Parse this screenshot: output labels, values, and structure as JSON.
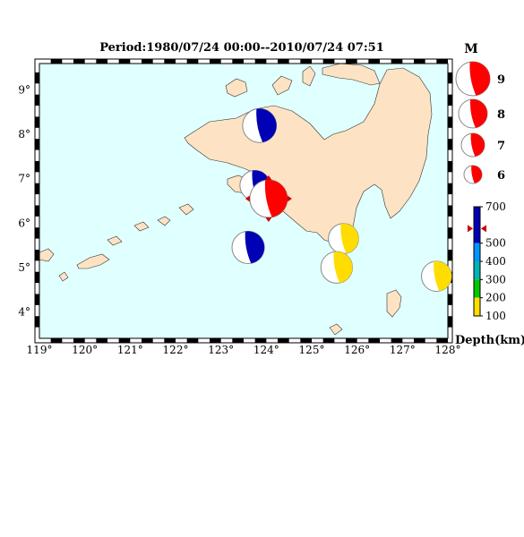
{
  "title": "Period:1980/07/24 00:00--2010/07/24 07:51",
  "map": {
    "lon_range": [
      119,
      128
    ],
    "lat_range": [
      3.4,
      9.6
    ],
    "ocean_color": "#e0ffff",
    "land_color": "#fde3c3",
    "lon_ticks": [
      "119°",
      "120°",
      "121°",
      "122°",
      "123°",
      "124°",
      "125°",
      "126°",
      "127°",
      "128°"
    ],
    "lat_ticks": [
      "9°",
      "8°",
      "7°",
      "6°",
      "5°",
      "4°"
    ]
  },
  "events": [
    {
      "lon": 123.85,
      "lat": 8.2,
      "magnitude": 7,
      "depth_band": "500-700",
      "color": "#0000b4"
    },
    {
      "lon": 123.75,
      "lat": 6.85,
      "magnitude": 6.5,
      "depth_band": "500-700",
      "color": "#0000b4"
    },
    {
      "lon": 124.05,
      "lat": 6.55,
      "magnitude": 7.5,
      "depth_band": "500-700",
      "color": "#ff0000",
      "selected": true
    },
    {
      "lon": 123.6,
      "lat": 5.45,
      "magnitude": 6.8,
      "depth_band": "500-700",
      "color": "#0000b4"
    },
    {
      "lon": 125.7,
      "lat": 5.65,
      "magnitude": 6.5,
      "depth_band": "0-100",
      "color": "#ffdd00"
    },
    {
      "lon": 125.55,
      "lat": 5.0,
      "magnitude": 6.7,
      "depth_band": "0-100",
      "color": "#ffdd00"
    },
    {
      "lon": 127.75,
      "lat": 4.8,
      "magnitude": 6.5,
      "depth_band": "0-100",
      "color": "#ffdd00"
    }
  ],
  "magnitude_legend": {
    "heading": "M",
    "items": [
      {
        "label": "9",
        "magnitude": 9
      },
      {
        "label": "8",
        "magnitude": 8
      },
      {
        "label": "7",
        "magnitude": 7
      },
      {
        "label": "6",
        "magnitude": 6
      }
    ]
  },
  "depth_colorbar": {
    "unit_label": "Depth(km)",
    "labels": [
      "700",
      "500",
      "400",
      "300",
      "200",
      "100"
    ],
    "bands": [
      {
        "range": "500-700",
        "color": "#0000b4"
      },
      {
        "range": "400-500",
        "color": "#0096ff"
      },
      {
        "range": "300-400",
        "color": "#00b4b4"
      },
      {
        "range": "200-300",
        "color": "#00c800"
      },
      {
        "range": "100-200",
        "color": "#ffdd00"
      }
    ],
    "marker_depth": 580,
    "marker_color": "#cc0000"
  }
}
